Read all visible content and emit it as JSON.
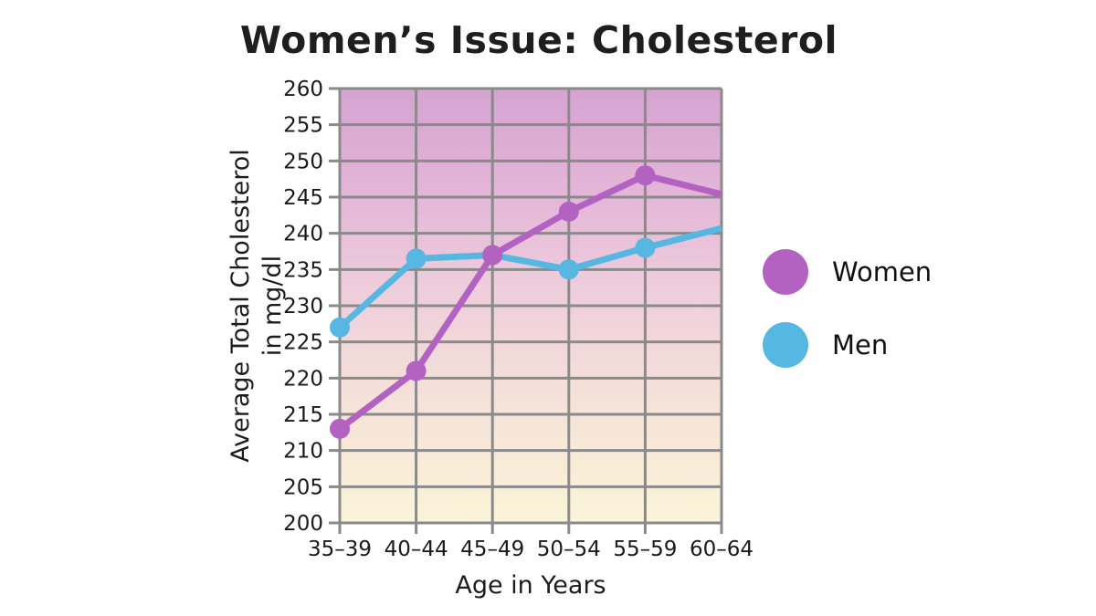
{
  "title": "Women’s Issue: Cholesterol",
  "chart_data": {
    "type": "line",
    "title": "Women’s Issue: Cholesterol",
    "categories": [
      "35–39",
      "40–44",
      "45–49",
      "50–54",
      "55–59",
      "60–64"
    ],
    "series": [
      {
        "name": "Women",
        "color": "#b362c1",
        "values": [
          213,
          221,
          237,
          243,
          248,
          245.4
        ]
      },
      {
        "name": "Men",
        "color": "#56b7e3",
        "values": [
          227,
          236.5,
          237,
          235,
          238,
          240.7
        ]
      }
    ],
    "xlabel": "Age in Years",
    "ylabel": "Average Total Cholesterol in mg/dl",
    "ylabel_lines": [
      "Average Total Cholesterol",
      "in mg/dl"
    ],
    "ylim": [
      200,
      260
    ],
    "ytick_step": 5,
    "grid": true,
    "grid_color": "#8a8a8a",
    "text_color": "#1b1b1b",
    "legend_position": "right",
    "marker_on_last_point": false,
    "plot_bg_gradient": [
      {
        "offset": 0,
        "color": "#d6a3d1"
      },
      {
        "offset": 0.22,
        "color": "#e2b4d7"
      },
      {
        "offset": 0.45,
        "color": "#eeccdc"
      },
      {
        "offset": 0.68,
        "color": "#f4dfd9"
      },
      {
        "offset": 0.86,
        "color": "#f8ebd8"
      },
      {
        "offset": 1,
        "color": "#faf4d9"
      }
    ]
  },
  "legend": {
    "items": [
      {
        "label": "Women",
        "color": "#b362c1"
      },
      {
        "label": "Men",
        "color": "#56b7e3"
      }
    ]
  }
}
